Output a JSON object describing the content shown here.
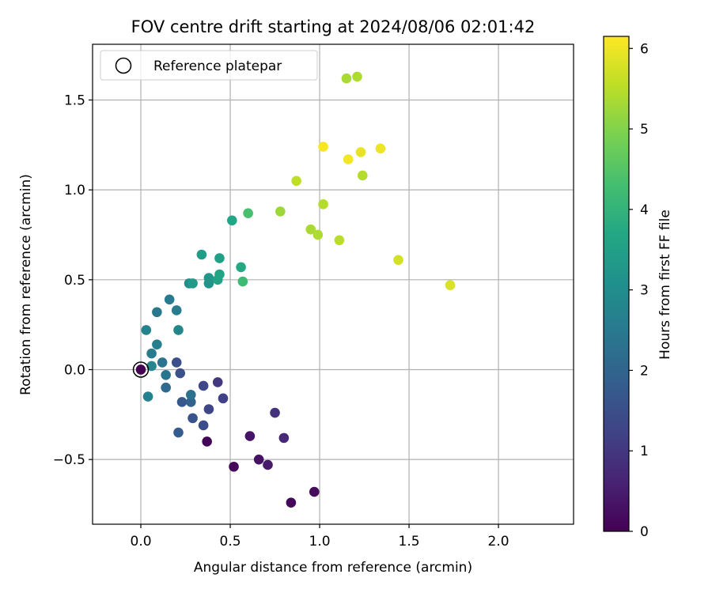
{
  "chart_data": {
    "type": "scatter",
    "title": "FOV centre drift starting at 2024/08/06 02:01:42",
    "xlabel": "Angular distance from reference (arcmin)",
    "ylabel": "Rotation from reference (arcmin)",
    "xlim": [
      -0.27,
      2.42
    ],
    "ylim": [
      -0.86,
      1.81
    ],
    "xticks": [
      0.0,
      0.5,
      1.0,
      1.5,
      2.0
    ],
    "xtick_labels": [
      "0.0",
      "0.5",
      "1.0",
      "1.5",
      "2.0"
    ],
    "yticks": [
      -0.5,
      0.0,
      0.5,
      1.0,
      1.5
    ],
    "ytick_labels": [
      "−0.5",
      "0.0",
      "0.5",
      "1.0",
      "1.5"
    ],
    "grid": true,
    "colormap": "viridis",
    "colorbar": {
      "label": "Hours from first FF file",
      "min": 0,
      "max": 6.15,
      "ticks": [
        0,
        1,
        2,
        3,
        4,
        5,
        6
      ],
      "tick_labels": [
        "0",
        "1",
        "2",
        "3",
        "4",
        "5",
        "6"
      ]
    },
    "legend": {
      "position": "top-left",
      "entries": [
        {
          "label": "Reference platepar",
          "marker": "open-circle",
          "color": "#000000"
        }
      ]
    },
    "reference_point": {
      "x": 0.0,
      "y": 0.0
    },
    "series": [
      {
        "color_by": "hours",
        "points": [
          {
            "x": 0.0,
            "y": 0.0,
            "hours": 0.0
          },
          {
            "x": 0.37,
            "y": -0.4,
            "hours": 0.05
          },
          {
            "x": 0.52,
            "y": -0.54,
            "hours": 0.1
          },
          {
            "x": 0.84,
            "y": -0.74,
            "hours": 0.15
          },
          {
            "x": 0.97,
            "y": -0.68,
            "hours": 0.2
          },
          {
            "x": 0.66,
            "y": -0.5,
            "hours": 0.3
          },
          {
            "x": 0.61,
            "y": -0.37,
            "hours": 0.35
          },
          {
            "x": 0.71,
            "y": -0.53,
            "hours": 0.45
          },
          {
            "x": 0.8,
            "y": -0.38,
            "hours": 0.7
          },
          {
            "x": 0.75,
            "y": -0.24,
            "hours": 0.9
          },
          {
            "x": 0.43,
            "y": -0.07,
            "hours": 1.0
          },
          {
            "x": 0.46,
            "y": -0.16,
            "hours": 1.2
          },
          {
            "x": 0.38,
            "y": -0.22,
            "hours": 1.3
          },
          {
            "x": 0.35,
            "y": -0.09,
            "hours": 1.35
          },
          {
            "x": 0.35,
            "y": -0.31,
            "hours": 1.45
          },
          {
            "x": 0.2,
            "y": 0.04,
            "hours": 1.5
          },
          {
            "x": 0.22,
            "y": -0.02,
            "hours": 1.55
          },
          {
            "x": 0.29,
            "y": -0.27,
            "hours": 1.6
          },
          {
            "x": 0.23,
            "y": -0.18,
            "hours": 1.7
          },
          {
            "x": 0.21,
            "y": -0.35,
            "hours": 1.8
          },
          {
            "x": 0.28,
            "y": -0.18,
            "hours": 1.95
          },
          {
            "x": 0.14,
            "y": -0.1,
            "hours": 2.1
          },
          {
            "x": 0.28,
            "y": -0.14,
            "hours": 2.3
          },
          {
            "x": 0.12,
            "y": 0.04,
            "hours": 2.35
          },
          {
            "x": 0.14,
            "y": -0.03,
            "hours": 2.4
          },
          {
            "x": 0.09,
            "y": 0.32,
            "hours": 2.45
          },
          {
            "x": 0.16,
            "y": 0.39,
            "hours": 2.5
          },
          {
            "x": 0.2,
            "y": 0.33,
            "hours": 2.55
          },
          {
            "x": 0.06,
            "y": 0.09,
            "hours": 2.6
          },
          {
            "x": 0.09,
            "y": 0.14,
            "hours": 2.65
          },
          {
            "x": 0.04,
            "y": -0.15,
            "hours": 2.7
          },
          {
            "x": 0.03,
            "y": 0.22,
            "hours": 2.75
          },
          {
            "x": 0.21,
            "y": 0.22,
            "hours": 2.8
          },
          {
            "x": 0.06,
            "y": 0.02,
            "hours": 2.85
          },
          {
            "x": 0.27,
            "y": 0.48,
            "hours": 3.0
          },
          {
            "x": 0.38,
            "y": 0.48,
            "hours": 3.15
          },
          {
            "x": 0.38,
            "y": 0.51,
            "hours": 3.25
          },
          {
            "x": 0.29,
            "y": 0.48,
            "hours": 3.35
          },
          {
            "x": 0.34,
            "y": 0.64,
            "hours": 3.4
          },
          {
            "x": 0.44,
            "y": 0.62,
            "hours": 3.5
          },
          {
            "x": 0.43,
            "y": 0.5,
            "hours": 3.55
          },
          {
            "x": 0.44,
            "y": 0.53,
            "hours": 3.6
          },
          {
            "x": 0.51,
            "y": 0.83,
            "hours": 3.65
          },
          {
            "x": 0.56,
            "y": 0.57,
            "hours": 3.75
          },
          {
            "x": 0.57,
            "y": 0.49,
            "hours": 4.2
          },
          {
            "x": 0.6,
            "y": 0.87,
            "hours": 4.35
          },
          {
            "x": 0.78,
            "y": 0.88,
            "hours": 5.25
          },
          {
            "x": 0.95,
            "y": 0.78,
            "hours": 5.35
          },
          {
            "x": 0.99,
            "y": 0.75,
            "hours": 5.4
          },
          {
            "x": 1.02,
            "y": 0.92,
            "hours": 5.45
          },
          {
            "x": 1.11,
            "y": 0.72,
            "hours": 5.5
          },
          {
            "x": 0.87,
            "y": 1.05,
            "hours": 5.55
          },
          {
            "x": 1.24,
            "y": 1.08,
            "hours": 5.45
          },
          {
            "x": 1.15,
            "y": 1.62,
            "hours": 5.35
          },
          {
            "x": 1.21,
            "y": 1.63,
            "hours": 5.4
          },
          {
            "x": 1.44,
            "y": 0.61,
            "hours": 5.75
          },
          {
            "x": 1.73,
            "y": 0.47,
            "hours": 5.8
          },
          {
            "x": 1.16,
            "y": 1.17,
            "hours": 6.05
          },
          {
            "x": 1.23,
            "y": 1.21,
            "hours": 5.95
          },
          {
            "x": 1.02,
            "y": 1.24,
            "hours": 6.1
          },
          {
            "x": 1.34,
            "y": 1.23,
            "hours": 6.0
          }
        ]
      }
    ]
  }
}
